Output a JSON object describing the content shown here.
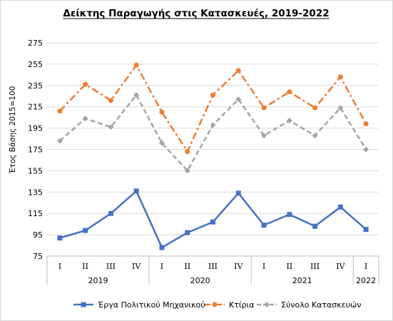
{
  "chart_data": {
    "type": "line",
    "title": "Δείκτης Παραγωγής στις Κατασκευές, 2019-2022",
    "ylabel": "Έτος Βάσης 2015=100",
    "xlabel": "",
    "ylim": [
      75,
      275
    ],
    "yticks": [
      75,
      95,
      115,
      135,
      155,
      175,
      195,
      215,
      235,
      255,
      275
    ],
    "grid": true,
    "legend_position": "bottom",
    "categories": [
      "I",
      "II",
      "III",
      "IV",
      "I",
      "II",
      "III",
      "IV",
      "I",
      "II",
      "III",
      "IV",
      "I"
    ],
    "groups": [
      {
        "label": "2019",
        "count": 4
      },
      {
        "label": "2020",
        "count": 4
      },
      {
        "label": "2021",
        "count": 4
      },
      {
        "label": "2022",
        "count": 1
      }
    ],
    "series": [
      {
        "name": "Έργα Πολιτικού Μηχανικού",
        "color": "#4472c4",
        "style": "solid",
        "marker": "square",
        "values": [
          92,
          99,
          115,
          136,
          83,
          97,
          107,
          134,
          104,
          114,
          103,
          121,
          100
        ]
      },
      {
        "name": "Κτίρια",
        "color": "#ed7d31",
        "style": "dash-dot",
        "marker": "circle",
        "values": [
          211,
          236,
          221,
          254,
          210,
          173,
          226,
          249,
          214,
          229,
          214,
          243,
          199
        ]
      },
      {
        "name": "Σύνολο Κατασκευών",
        "color": "#a5a5a5",
        "style": "dashed",
        "marker": "diamond",
        "values": [
          183,
          204,
          196,
          226,
          181,
          155,
          198,
          222,
          188,
          202,
          188,
          214,
          175
        ]
      }
    ]
  }
}
